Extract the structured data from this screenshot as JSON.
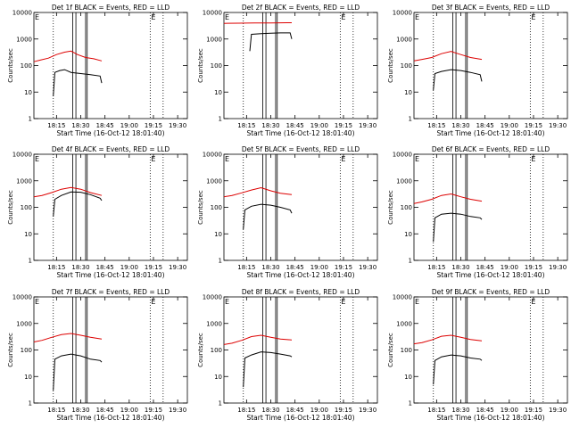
{
  "ylabel": "Counts/sec",
  "xlabel": "Start Time (16-Oct-12 18:01:40)",
  "x_tick_labels": [
    "18:15",
    "18:30",
    "18:45",
    "19:00",
    "19:15",
    "19:30"
  ],
  "y_tick_labels": [
    "1",
    "10",
    "100",
    "1000",
    "10000"
  ],
  "marker_label": "E",
  "colors": {
    "events": "#000000",
    "lld": "#dd0000"
  },
  "chart_data": [
    {
      "type": "line",
      "title": "Det 1f BLACK = Events, RED = LLD",
      "series": [
        {
          "name": "BLACK",
          "color": "#000000",
          "x": [
            "18:13",
            "18:14",
            "18:17",
            "18:20",
            "18:24",
            "18:30",
            "18:36",
            "18:42",
            "18:43"
          ],
          "values": [
            7,
            55,
            65,
            70,
            55,
            50,
            45,
            40,
            22
          ]
        },
        {
          "name": "RED",
          "color": "#dd0000",
          "x": [
            "18:01",
            "18:05",
            "18:10",
            "18:15",
            "18:20",
            "18:24",
            "18:28",
            "18:33",
            "18:38",
            "18:43"
          ],
          "values": [
            140,
            160,
            190,
            260,
            320,
            350,
            260,
            200,
            180,
            150
          ]
        }
      ],
      "xlim": [
        "18:01",
        "19:36"
      ],
      "ylim": [
        1,
        10000
      ],
      "yscale": "log"
    },
    {
      "type": "line",
      "title": "Det 2f BLACK = Events, RED = LLD",
      "series": [
        {
          "name": "BLACK",
          "color": "#000000",
          "x": [
            "18:17",
            "18:18",
            "18:24",
            "18:30",
            "18:36",
            "18:42",
            "18:43"
          ],
          "values": [
            350,
            1500,
            1600,
            1650,
            1700,
            1700,
            1000
          ]
        },
        {
          "name": "RED",
          "color": "#dd0000",
          "x": [
            "18:01",
            "18:10",
            "18:20",
            "18:30",
            "18:40",
            "18:43"
          ],
          "values": [
            3900,
            3950,
            4000,
            4050,
            4100,
            4100
          ]
        }
      ],
      "xlim": [
        "18:01",
        "19:36"
      ],
      "ylim": [
        1,
        10000
      ],
      "yscale": "log"
    },
    {
      "type": "line",
      "title": "Det 3f BLACK = Events, RED = LLD",
      "series": [
        {
          "name": "BLACK",
          "color": "#000000",
          "x": [
            "18:13",
            "18:14",
            "18:18",
            "18:24",
            "18:30",
            "18:36",
            "18:42",
            "18:43"
          ],
          "values": [
            12,
            50,
            60,
            70,
            65,
            55,
            45,
            25
          ]
        },
        {
          "name": "RED",
          "color": "#dd0000",
          "x": [
            "18:01",
            "18:06",
            "18:12",
            "18:18",
            "18:24",
            "18:30",
            "18:36",
            "18:43"
          ],
          "values": [
            150,
            170,
            200,
            280,
            340,
            260,
            200,
            170
          ]
        }
      ],
      "xlim": [
        "18:01",
        "19:36"
      ],
      "ylim": [
        1,
        10000
      ],
      "yscale": "log"
    },
    {
      "type": "line",
      "title": "Det 4f BLACK = Events, RED = LLD",
      "series": [
        {
          "name": "BLACK",
          "color": "#000000",
          "x": [
            "18:13",
            "18:14",
            "18:18",
            "18:24",
            "18:30",
            "18:36",
            "18:42",
            "18:43"
          ],
          "values": [
            45,
            200,
            280,
            380,
            370,
            300,
            220,
            180
          ]
        },
        {
          "name": "RED",
          "color": "#dd0000",
          "x": [
            "18:01",
            "18:06",
            "18:12",
            "18:18",
            "18:24",
            "18:30",
            "18:36",
            "18:43"
          ],
          "values": [
            250,
            280,
            360,
            480,
            560,
            480,
            360,
            280
          ]
        }
      ],
      "xlim": [
        "18:01",
        "19:36"
      ],
      "ylim": [
        1,
        10000
      ],
      "yscale": "log"
    },
    {
      "type": "line",
      "title": "Det 5f BLACK = Events, RED = LLD",
      "series": [
        {
          "name": "BLACK",
          "color": "#000000",
          "x": [
            "18:13",
            "18:14",
            "18:18",
            "18:24",
            "18:30",
            "18:36",
            "18:42",
            "18:43"
          ],
          "values": [
            15,
            80,
            110,
            130,
            120,
            100,
            80,
            60
          ]
        },
        {
          "name": "RED",
          "color": "#dd0000",
          "x": [
            "18:01",
            "18:06",
            "18:12",
            "18:18",
            "18:24",
            "18:30",
            "18:36",
            "18:43"
          ],
          "values": [
            250,
            280,
            350,
            450,
            550,
            420,
            340,
            300
          ]
        }
      ],
      "xlim": [
        "18:01",
        "19:36"
      ],
      "ylim": [
        1,
        10000
      ],
      "yscale": "log"
    },
    {
      "type": "line",
      "title": "Det 6f BLACK = Events, RED = LLD",
      "series": [
        {
          "name": "BLACK",
          "color": "#000000",
          "x": [
            "18:13",
            "18:14",
            "18:18",
            "18:24",
            "18:30",
            "18:36",
            "18:42",
            "18:43"
          ],
          "values": [
            5,
            40,
            55,
            60,
            55,
            45,
            40,
            35
          ]
        },
        {
          "name": "RED",
          "color": "#dd0000",
          "x": [
            "18:01",
            "18:06",
            "18:12",
            "18:18",
            "18:24",
            "18:30",
            "18:36",
            "18:43"
          ],
          "values": [
            140,
            160,
            200,
            280,
            320,
            250,
            200,
            170
          ]
        }
      ],
      "xlim": [
        "18:01",
        "19:36"
      ],
      "ylim": [
        1,
        10000
      ],
      "yscale": "log"
    },
    {
      "type": "line",
      "title": "Det 7f BLACK = Events, RED = LLD",
      "series": [
        {
          "name": "BLACK",
          "color": "#000000",
          "x": [
            "18:13",
            "18:14",
            "18:18",
            "18:24",
            "18:30",
            "18:36",
            "18:42",
            "18:43"
          ],
          "values": [
            3,
            45,
            60,
            70,
            60,
            45,
            40,
            35
          ]
        },
        {
          "name": "RED",
          "color": "#dd0000",
          "x": [
            "18:01",
            "18:06",
            "18:12",
            "18:18",
            "18:24",
            "18:30",
            "18:36",
            "18:43"
          ],
          "values": [
            200,
            230,
            300,
            380,
            420,
            360,
            300,
            260
          ]
        }
      ],
      "xlim": [
        "18:01",
        "19:36"
      ],
      "ylim": [
        1,
        10000
      ],
      "yscale": "log"
    },
    {
      "type": "line",
      "title": "Det 8f BLACK = Events, RED = LLD",
      "series": [
        {
          "name": "BLACK",
          "color": "#000000",
          "x": [
            "18:13",
            "18:14",
            "18:18",
            "18:24",
            "18:30",
            "18:36",
            "18:42",
            "18:43"
          ],
          "values": [
            4,
            50,
            65,
            85,
            80,
            70,
            60,
            55
          ]
        },
        {
          "name": "RED",
          "color": "#dd0000",
          "x": [
            "18:01",
            "18:06",
            "18:12",
            "18:18",
            "18:24",
            "18:30",
            "18:36",
            "18:43"
          ],
          "values": [
            160,
            180,
            230,
            320,
            360,
            300,
            260,
            240
          ]
        }
      ],
      "xlim": [
        "18:01",
        "19:36"
      ],
      "ylim": [
        1,
        10000
      ],
      "yscale": "log"
    },
    {
      "type": "line",
      "title": "Det 9f BLACK = Events, RED = LLD",
      "series": [
        {
          "name": "BLACK",
          "color": "#000000",
          "x": [
            "18:13",
            "18:14",
            "18:18",
            "18:24",
            "18:30",
            "18:36",
            "18:42",
            "18:43"
          ],
          "values": [
            5,
            40,
            55,
            65,
            60,
            50,
            45,
            40
          ]
        },
        {
          "name": "RED",
          "color": "#dd0000",
          "x": [
            "18:01",
            "18:06",
            "18:12",
            "18:18",
            "18:24",
            "18:30",
            "18:36",
            "18:43"
          ],
          "values": [
            170,
            190,
            240,
            330,
            360,
            300,
            250,
            220
          ]
        }
      ],
      "xlim": [
        "18:01",
        "19:36"
      ],
      "ylim": [
        1,
        10000
      ],
      "yscale": "log"
    }
  ]
}
